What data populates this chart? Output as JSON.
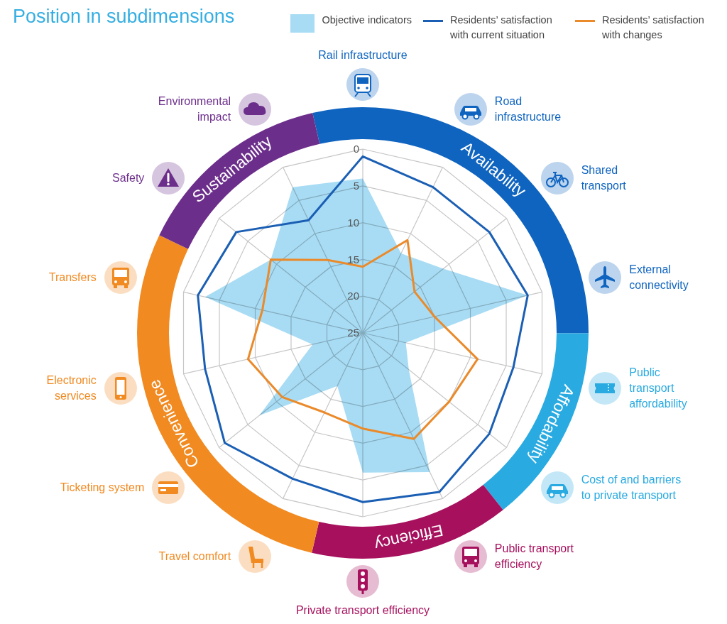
{
  "chart_data": [
    {
      "type": "radar",
      "title": "Position in subdimensions",
      "categories": [
        "Rail infrastructure",
        "Road\ninfrastructure",
        "Shared\ntransport",
        "External\nconnectivity",
        "Public\ntransport\naffordability",
        "Cost of and barriers\nto private transport",
        "Public transport\nefficiency",
        "Private transport efficiency",
        "Travel comfort",
        "Ticketing system",
        "Electronic\nservices",
        "Transfers",
        "Safety",
        "Environmental\nimpact"
      ],
      "series": [
        {
          "name": "Objective indicators",
          "color": "#a8dcf4",
          "values": [
            4,
            13,
            11,
            2,
            19,
            17,
            4,
            6,
            17,
            7,
            18,
            3,
            9,
            3
          ]
        },
        {
          "name": "Residents’ satisfaction with current situation",
          "color": "#1b5fb4",
          "values": [
            1,
            3,
            3,
            2,
            4,
            3,
            1,
            2,
            3,
            1,
            3,
            2,
            3,
            8
          ]
        },
        {
          "name": "Residents’ satisfaction with changes",
          "color": "#ea8a2a",
          "values": [
            16,
            11,
            16,
            15,
            9,
            10,
            9,
            12,
            13,
            11,
            9,
            11,
            9,
            14
          ]
        }
      ],
      "ylim": [
        25,
        0
      ],
      "yticks": [
        0,
        5,
        10,
        15,
        20,
        25
      ],
      "grid": true,
      "legend": "top right"
    },
    {
      "type": "donut",
      "categories": [
        "Availability",
        "Affordability",
        "Efficiency",
        "Convenience",
        "Sustainability"
      ],
      "values": [
        28.6,
        14.3,
        14.3,
        28.5,
        14.3
      ],
      "colors": [
        "#0f64c0",
        "#29aae1",
        "#a6105d",
        "#f18a21",
        "#6c2e8b"
      ]
    }
  ]
}
